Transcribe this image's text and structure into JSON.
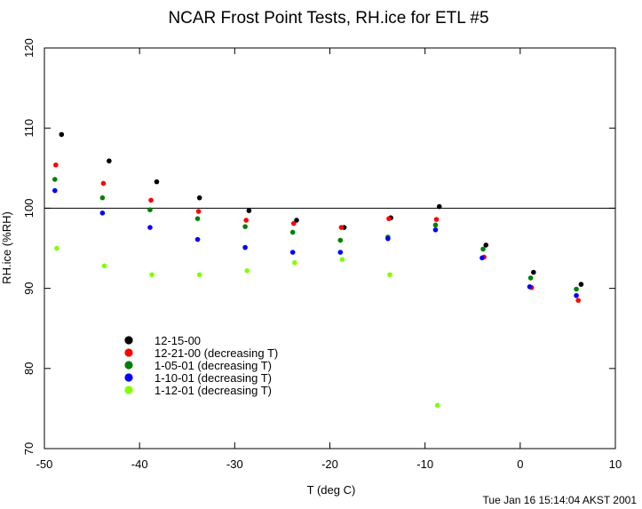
{
  "chart_data": {
    "type": "scatter",
    "title": "NCAR Frost Point Tests, RH.ice for ETL #5",
    "xlabel": "T (deg C)",
    "ylabel": "RH.ice (%RH)",
    "xlim": [
      -50,
      10
    ],
    "ylim": [
      70,
      120
    ],
    "xticks": [
      -50,
      -40,
      -30,
      -20,
      -10,
      0,
      10
    ],
    "yticks": [
      70,
      80,
      90,
      100,
      110,
      120
    ],
    "xtick_labels": [
      "-50",
      "-40",
      "-30",
      "-20",
      "-10",
      "0",
      "10"
    ],
    "ytick_labels": [
      "70",
      "80",
      "90",
      "100",
      "110",
      "120"
    ],
    "reference_line_y": 100,
    "grid": false,
    "legend_position": "lower-left",
    "series": [
      {
        "name": "12-15-00",
        "color": "#000000",
        "x": [
          -48.2,
          -43.2,
          -38.2,
          -33.7,
          -28.5,
          -23.5,
          -18.5,
          -13.6,
          -8.5,
          -3.6,
          1.4,
          6.4
        ],
        "y": [
          109.2,
          105.9,
          103.3,
          101.3,
          99.7,
          98.5,
          97.6,
          98.8,
          100.2,
          95.4,
          92.0,
          90.5
        ]
      },
      {
        "name": "12-21-00 (decreasing T)",
        "color": "#ff0000",
        "x": [
          -48.8,
          -43.8,
          -38.8,
          -33.8,
          -28.8,
          -23.8,
          -18.8,
          -13.8,
          -8.8,
          -3.8,
          1.2,
          6.1
        ],
        "y": [
          105.4,
          103.1,
          101.0,
          99.6,
          98.5,
          98.1,
          97.6,
          98.7,
          98.6,
          93.9,
          90.1,
          88.5
        ]
      },
      {
        "name": "1-05-01 (decreasing T)",
        "color": "#008000",
        "x": [
          -48.9,
          -43.9,
          -38.9,
          -33.9,
          -28.9,
          -23.9,
          -18.9,
          -13.9,
          -8.9,
          -3.9,
          1.1,
          5.9
        ],
        "y": [
          103.6,
          101.3,
          99.8,
          98.7,
          97.7,
          97.0,
          96.0,
          96.4,
          97.9,
          94.9,
          91.3,
          89.9
        ]
      },
      {
        "name": "1-10-01 (decreasing T)",
        "color": "#0000ff",
        "x": [
          -48.9,
          -43.9,
          -38.9,
          -33.9,
          -28.9,
          -23.9,
          -18.9,
          -13.9,
          -8.9,
          -4.0,
          1.0,
          5.9
        ],
        "y": [
          102.2,
          99.4,
          97.6,
          96.1,
          95.1,
          94.5,
          94.5,
          96.2,
          97.3,
          93.8,
          90.2,
          89.1
        ]
      },
      {
        "name": "1-12-01 (decreasing T)",
        "color": "#80ff00",
        "x": [
          -48.7,
          -43.7,
          -38.7,
          -33.7,
          -28.7,
          -23.7,
          -18.7,
          -13.7,
          -8.7
        ],
        "y": [
          95.0,
          92.8,
          91.7,
          91.7,
          92.2,
          93.2,
          93.6,
          91.7,
          75.4
        ]
      }
    ]
  },
  "timestamp": "Tue Jan 16 15:14:04 AKST 2001"
}
